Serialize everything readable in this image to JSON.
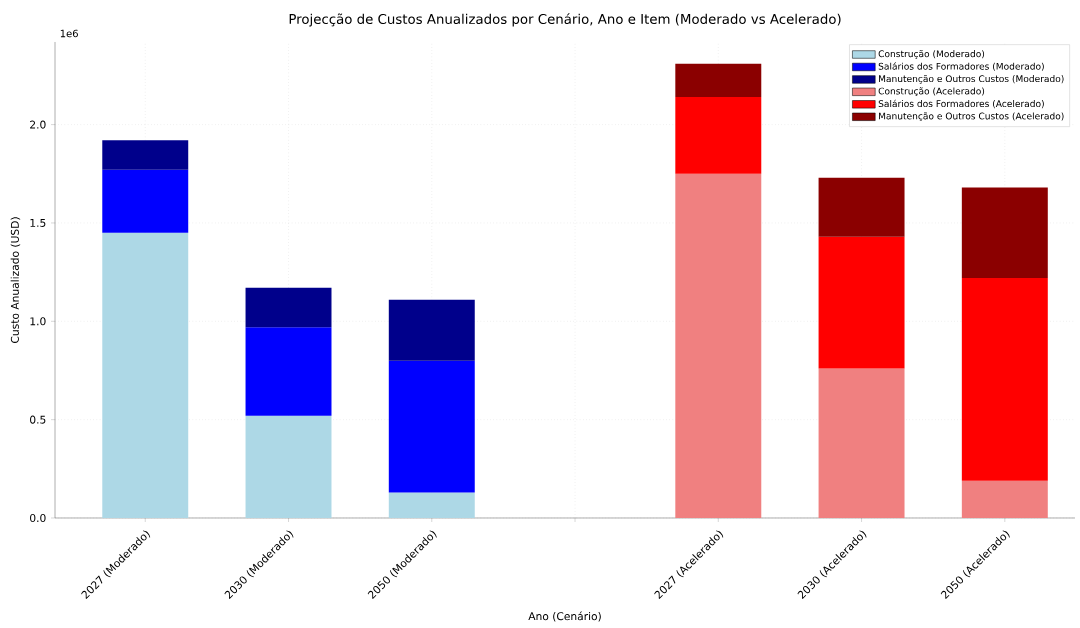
{
  "chart_data": {
    "type": "bar",
    "stacked": true,
    "title": "Projecção de Custos Anualizados por Cenário, Ano e Item (Moderado vs Acelerado)",
    "xlabel": "Ano (Cenário)",
    "ylabel": "Custo Anualizado (USD)",
    "categories": [
      "2027 (Moderado)",
      "2030 (Moderado)",
      "2050 (Moderado)",
      null,
      "2027 (Acelerado)",
      "2030 (Acelerado)",
      "2050 (Acelerado)"
    ],
    "series": [
      {
        "name": "Construção (Moderado)",
        "color": "#add8e6",
        "values": [
          1.45,
          0.52,
          0.13,
          null,
          null,
          null,
          null
        ]
      },
      {
        "name": "Salários dos Formadores (Moderado)",
        "color": "#0000ff",
        "values": [
          0.32,
          0.45,
          0.67,
          null,
          null,
          null,
          null
        ]
      },
      {
        "name": "Manutenção e Outros Custos (Moderado)",
        "color": "#00008b",
        "values": [
          0.15,
          0.2,
          0.31,
          null,
          null,
          null,
          null
        ]
      },
      {
        "name": "Construção (Acelerado)",
        "color": "#f08080",
        "values": [
          null,
          null,
          null,
          null,
          1.75,
          0.76,
          0.19
        ]
      },
      {
        "name": "Salários dos Formadores (Acelerado)",
        "color": "#ff0000",
        "values": [
          null,
          null,
          null,
          null,
          0.39,
          0.67,
          1.03
        ]
      },
      {
        "name": "Manutenção e Outros Custos (Acelerado)",
        "color": "#8b0000",
        "values": [
          null,
          null,
          null,
          null,
          0.17,
          0.3,
          0.46
        ]
      }
    ],
    "ylim": [
      0,
      2.42
    ],
    "yticks": [
      {
        "value": 0,
        "label": "0.0"
      },
      {
        "value": 0.5,
        "label": "0.5"
      },
      {
        "value": 1,
        "label": "1.0"
      },
      {
        "value": 1.5,
        "label": "1.5"
      },
      {
        "value": 2,
        "label": "2.0"
      }
    ],
    "annotations": [
      "1e6"
    ],
    "grid": true,
    "legend": "top right"
  }
}
